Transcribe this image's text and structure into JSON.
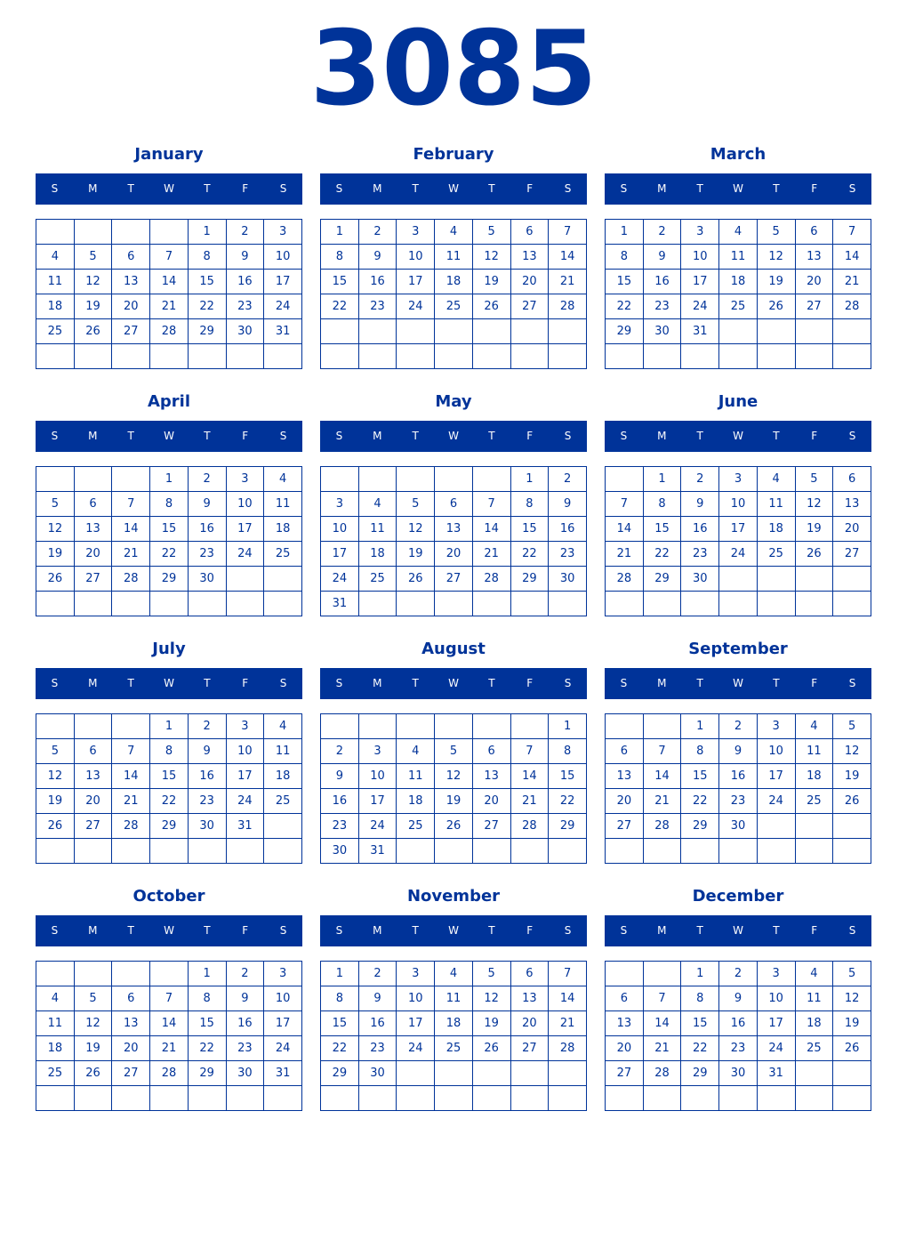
{
  "year": "3085",
  "weekdays": [
    "S",
    "M",
    "T",
    "W",
    "T",
    "F",
    "S"
  ],
  "colors": {
    "primary": "#003399",
    "header_text": "#ffffff"
  },
  "months": [
    {
      "name": "January",
      "weeks": [
        [
          null,
          null,
          null,
          null,
          1,
          2,
          3
        ],
        [
          4,
          5,
          6,
          7,
          8,
          9,
          10
        ],
        [
          11,
          12,
          13,
          14,
          15,
          16,
          17
        ],
        [
          18,
          19,
          20,
          21,
          22,
          23,
          24
        ],
        [
          25,
          26,
          27,
          28,
          29,
          30,
          31
        ],
        [
          null,
          null,
          null,
          null,
          null,
          null,
          null
        ]
      ]
    },
    {
      "name": "February",
      "weeks": [
        [
          1,
          2,
          3,
          4,
          5,
          6,
          7
        ],
        [
          8,
          9,
          10,
          11,
          12,
          13,
          14
        ],
        [
          15,
          16,
          17,
          18,
          19,
          20,
          21
        ],
        [
          22,
          23,
          24,
          25,
          26,
          27,
          28
        ],
        [
          null,
          null,
          null,
          null,
          null,
          null,
          null
        ],
        [
          null,
          null,
          null,
          null,
          null,
          null,
          null
        ]
      ]
    },
    {
      "name": "March",
      "weeks": [
        [
          1,
          2,
          3,
          4,
          5,
          6,
          7
        ],
        [
          8,
          9,
          10,
          11,
          12,
          13,
          14
        ],
        [
          15,
          16,
          17,
          18,
          19,
          20,
          21
        ],
        [
          22,
          23,
          24,
          25,
          26,
          27,
          28
        ],
        [
          29,
          30,
          31,
          null,
          null,
          null,
          null
        ],
        [
          null,
          null,
          null,
          null,
          null,
          null,
          null
        ]
      ]
    },
    {
      "name": "April",
      "weeks": [
        [
          null,
          null,
          null,
          1,
          2,
          3,
          4
        ],
        [
          5,
          6,
          7,
          8,
          9,
          10,
          11
        ],
        [
          12,
          13,
          14,
          15,
          16,
          17,
          18
        ],
        [
          19,
          20,
          21,
          22,
          23,
          24,
          25
        ],
        [
          26,
          27,
          28,
          29,
          30,
          null,
          null
        ],
        [
          null,
          null,
          null,
          null,
          null,
          null,
          null
        ]
      ]
    },
    {
      "name": "May",
      "weeks": [
        [
          null,
          null,
          null,
          null,
          null,
          1,
          2
        ],
        [
          3,
          4,
          5,
          6,
          7,
          8,
          9
        ],
        [
          10,
          11,
          12,
          13,
          14,
          15,
          16
        ],
        [
          17,
          18,
          19,
          20,
          21,
          22,
          23
        ],
        [
          24,
          25,
          26,
          27,
          28,
          29,
          30
        ],
        [
          31,
          null,
          null,
          null,
          null,
          null,
          null
        ]
      ]
    },
    {
      "name": "June",
      "weeks": [
        [
          null,
          1,
          2,
          3,
          4,
          5,
          6
        ],
        [
          7,
          8,
          9,
          10,
          11,
          12,
          13
        ],
        [
          14,
          15,
          16,
          17,
          18,
          19,
          20
        ],
        [
          21,
          22,
          23,
          24,
          25,
          26,
          27
        ],
        [
          28,
          29,
          30,
          null,
          null,
          null,
          null
        ],
        [
          null,
          null,
          null,
          null,
          null,
          null,
          null
        ]
      ]
    },
    {
      "name": "July",
      "weeks": [
        [
          null,
          null,
          null,
          1,
          2,
          3,
          4
        ],
        [
          5,
          6,
          7,
          8,
          9,
          10,
          11
        ],
        [
          12,
          13,
          14,
          15,
          16,
          17,
          18
        ],
        [
          19,
          20,
          21,
          22,
          23,
          24,
          25
        ],
        [
          26,
          27,
          28,
          29,
          30,
          31,
          null
        ],
        [
          null,
          null,
          null,
          null,
          null,
          null,
          null
        ]
      ]
    },
    {
      "name": "August",
      "weeks": [
        [
          null,
          null,
          null,
          null,
          null,
          null,
          1
        ],
        [
          2,
          3,
          4,
          5,
          6,
          7,
          8
        ],
        [
          9,
          10,
          11,
          12,
          13,
          14,
          15
        ],
        [
          16,
          17,
          18,
          19,
          20,
          21,
          22
        ],
        [
          23,
          24,
          25,
          26,
          27,
          28,
          29
        ],
        [
          30,
          31,
          null,
          null,
          null,
          null,
          null
        ]
      ]
    },
    {
      "name": "September",
      "weeks": [
        [
          null,
          null,
          1,
          2,
          3,
          4,
          5
        ],
        [
          6,
          7,
          8,
          9,
          10,
          11,
          12
        ],
        [
          13,
          14,
          15,
          16,
          17,
          18,
          19
        ],
        [
          20,
          21,
          22,
          23,
          24,
          25,
          26
        ],
        [
          27,
          28,
          29,
          30,
          null,
          null,
          null
        ],
        [
          null,
          null,
          null,
          null,
          null,
          null,
          null
        ]
      ]
    },
    {
      "name": "October",
      "weeks": [
        [
          null,
          null,
          null,
          null,
          1,
          2,
          3
        ],
        [
          4,
          5,
          6,
          7,
          8,
          9,
          10
        ],
        [
          11,
          12,
          13,
          14,
          15,
          16,
          17
        ],
        [
          18,
          19,
          20,
          21,
          22,
          23,
          24
        ],
        [
          25,
          26,
          27,
          28,
          29,
          30,
          31
        ],
        [
          null,
          null,
          null,
          null,
          null,
          null,
          null
        ]
      ]
    },
    {
      "name": "November",
      "weeks": [
        [
          1,
          2,
          3,
          4,
          5,
          6,
          7
        ],
        [
          8,
          9,
          10,
          11,
          12,
          13,
          14
        ],
        [
          15,
          16,
          17,
          18,
          19,
          20,
          21
        ],
        [
          22,
          23,
          24,
          25,
          26,
          27,
          28
        ],
        [
          29,
          30,
          null,
          null,
          null,
          null,
          null
        ],
        [
          null,
          null,
          null,
          null,
          null,
          null,
          null
        ]
      ]
    },
    {
      "name": "December",
      "weeks": [
        [
          null,
          null,
          1,
          2,
          3,
          4,
          5
        ],
        [
          6,
          7,
          8,
          9,
          10,
          11,
          12
        ],
        [
          13,
          14,
          15,
          16,
          17,
          18,
          19
        ],
        [
          20,
          21,
          22,
          23,
          24,
          25,
          26
        ],
        [
          27,
          28,
          29,
          30,
          31,
          null,
          null
        ],
        [
          null,
          null,
          null,
          null,
          null,
          null,
          null
        ]
      ]
    }
  ]
}
